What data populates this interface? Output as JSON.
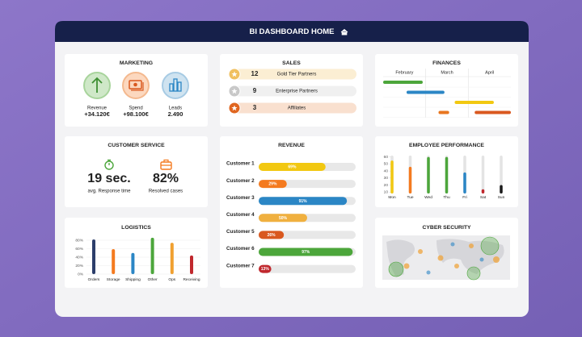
{
  "header": {
    "title": "BI DASHBOARD HOME"
  },
  "marketing": {
    "title": "MARKETING",
    "items": [
      {
        "label": "Revenue",
        "value": "+34.120€"
      },
      {
        "label": "Spend",
        "value": "+98.100€"
      },
      {
        "label": "Leads",
        "value": "2.490"
      }
    ]
  },
  "sales": {
    "title": "SALES",
    "items": [
      {
        "count": 12,
        "label": "Gold Tier Partners"
      },
      {
        "count": 9,
        "label": "Enterprise Partners"
      },
      {
        "count": 3,
        "label": "Affiliates"
      }
    ]
  },
  "finances": {
    "type": "gantt",
    "title": "FINANCES",
    "columns": [
      "February",
      "March",
      "April"
    ],
    "xlim": [
      0,
      3
    ],
    "rows": [
      [
        {
          "start": 0,
          "end": 0.93,
          "color": "#4ca63b"
        }
      ],
      [
        {
          "start": 0.55,
          "end": 1.44,
          "color": "#2b86c5"
        }
      ],
      [
        {
          "start": 1.68,
          "end": 2.6,
          "color": "#f2c811"
        }
      ],
      [
        {
          "start": 1.3,
          "end": 1.55,
          "color": "#e8761f"
        },
        {
          "start": 2.15,
          "end": 3,
          "color": "#d9581f"
        }
      ]
    ]
  },
  "customer_service": {
    "title": "CUSTOMER SERVICE",
    "kpis": [
      {
        "value": "19 sec.",
        "label": "avg. Response time"
      },
      {
        "value": "82%",
        "label": "Resolved cases"
      }
    ]
  },
  "revenue": {
    "type": "progress",
    "title": "REVENUE",
    "xlim": [
      0,
      100
    ],
    "categories": [
      "Customer 1",
      "Customer 2",
      "Customer 3",
      "Customer 4",
      "Customer 5",
      "Customer 6",
      "Customer 7"
    ],
    "values": [
      69,
      29,
      91,
      50,
      26,
      97,
      13
    ],
    "value_labels": [
      "69%",
      "29%",
      "91%",
      "50%",
      "26%",
      "97%",
      "13%"
    ],
    "colors": [
      "#f2c811",
      "#f47a1f",
      "#2b86c5",
      "#f0b03f",
      "#d9581f",
      "#4ca63b",
      "#c0282d"
    ]
  },
  "employee_performance": {
    "type": "bar",
    "title": "EMPLOYEE PERFORMANCE",
    "categories": [
      "Mon",
      "Tue",
      "Wed",
      "Thu",
      "Fri",
      "Sat",
      "Sun"
    ],
    "values": [
      55,
      46,
      60,
      60,
      38,
      14,
      20
    ],
    "colors": [
      "#f2c811",
      "#f47a1f",
      "#4ca63b",
      "#4ca63b",
      "#2b86c5",
      "#c0282d",
      "#1a1a1a"
    ],
    "ylim": [
      8,
      62
    ],
    "yticks": [
      10,
      20,
      30,
      40,
      50,
      60
    ]
  },
  "logistics": {
    "type": "bar",
    "title": "LOGISTICS",
    "categories": [
      "Orders",
      "Storage",
      "Shipping",
      "Other",
      "Ops",
      "Receiving"
    ],
    "values": [
      82,
      59,
      50,
      86,
      74,
      44
    ],
    "colors": [
      "#2c3e6b",
      "#f47a1f",
      "#2b86c5",
      "#4ca63b",
      "#f0a030",
      "#c0282d"
    ],
    "ylim": [
      0,
      90
    ],
    "grid": true,
    "yticks": [
      {
        "value": 0,
        "label": "0%"
      },
      {
        "value": 20,
        "label": "20%"
      },
      {
        "value": 40,
        "label": "40%"
      },
      {
        "value": 60,
        "label": "60%"
      },
      {
        "value": 80,
        "label": "80%"
      }
    ]
  },
  "cyber_security": {
    "title": "CYBER SECURITY"
  }
}
